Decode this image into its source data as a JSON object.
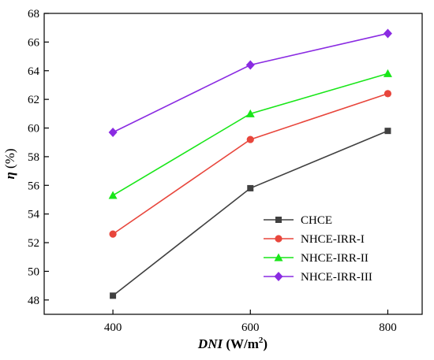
{
  "chart_data": {
    "type": "line",
    "title": "",
    "xlabel": {
      "var": "DNI",
      "unit_prefix": " (W/m",
      "unit_sup": "2",
      "unit_suffix": ")"
    },
    "ylabel": {
      "var": "η",
      "unit": " (%)"
    },
    "x": [
      400,
      600,
      800
    ],
    "xlim": [
      300,
      850
    ],
    "ylim": [
      47,
      68
    ],
    "xticks": [
      "400",
      "600",
      "800"
    ],
    "yticks": [
      "48",
      "50",
      "52",
      "54",
      "56",
      "58",
      "60",
      "62",
      "64",
      "66",
      "68"
    ],
    "grid": false,
    "legend_position": "bottom-right",
    "series": [
      {
        "name": "CHCE",
        "values": [
          48.3,
          55.8,
          59.8
        ],
        "color": "#404040",
        "marker": "square"
      },
      {
        "name": "NHCE-IRR-I",
        "values": [
          52.6,
          59.2,
          62.4
        ],
        "color": "#e8463c",
        "marker": "circle"
      },
      {
        "name": "NHCE-IRR-II",
        "values": [
          55.3,
          61.0,
          63.8
        ],
        "color": "#19e619",
        "marker": "triangle"
      },
      {
        "name": "NHCE-IRR-III",
        "values": [
          59.7,
          64.4,
          66.6
        ],
        "color": "#8a2be2",
        "marker": "diamond"
      }
    ]
  }
}
